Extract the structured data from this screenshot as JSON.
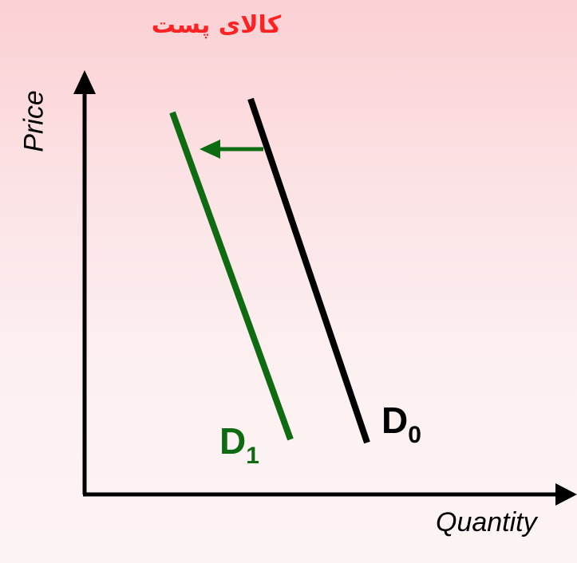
{
  "title": "کالای پست",
  "axes": {
    "y_label": "Price",
    "x_label": "Quantity"
  },
  "curves": {
    "d0": {
      "letter": "D",
      "subscript": "0",
      "color": "#000000"
    },
    "d1": {
      "letter": "D",
      "subscript": "1",
      "color": "#0f6b12"
    }
  },
  "shift_arrow_color": "#0f6b12"
}
